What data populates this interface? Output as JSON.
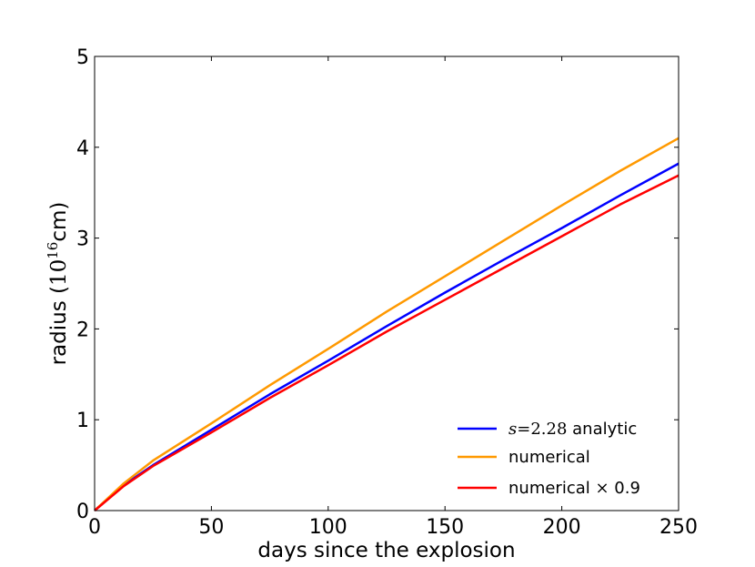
{
  "chart_data": {
    "type": "line",
    "xlabel": "days since the explosion",
    "ylabel": "radius (10^16 cm)",
    "ylabel_parts": {
      "prefix": "radius (",
      "base": "10",
      "exponent": "16",
      "suffix": "cm)"
    },
    "xlim": [
      0,
      250
    ],
    "ylim": [
      0,
      5
    ],
    "xticks": [
      0,
      50,
      100,
      150,
      200,
      250
    ],
    "yticks": [
      0,
      1,
      2,
      3,
      4,
      5
    ],
    "xtick_labels": [
      "0",
      "50",
      "100",
      "150",
      "200",
      "250"
    ],
    "ytick_labels": [
      "0",
      "1",
      "2",
      "3",
      "4",
      "5"
    ],
    "grid": false,
    "legend_position": "bottom-right",
    "series": [
      {
        "name": "s = 2.28 analytic",
        "name_parts": {
          "symbol": "s",
          "eq": "=",
          "value": "2.28",
          "suffix": " analytic"
        },
        "color": "#0000ff",
        "x": [
          0,
          12.5,
          25,
          50,
          75,
          100,
          125,
          150,
          175,
          200,
          225,
          250
        ],
        "y": [
          0,
          0.28,
          0.5,
          0.89,
          1.28,
          1.65,
          2.03,
          2.4,
          2.76,
          3.11,
          3.47,
          3.82
        ]
      },
      {
        "name": "numerical",
        "color": "#ff9900",
        "x": [
          0,
          12.5,
          25,
          50,
          75,
          100,
          125,
          150,
          175,
          200,
          225,
          250
        ],
        "y": [
          0,
          0.3,
          0.55,
          0.96,
          1.38,
          1.78,
          2.19,
          2.58,
          2.97,
          3.36,
          3.74,
          4.1
        ]
      },
      {
        "name": "numerical × 0.9",
        "name_parts": {
          "text": "numerical ",
          "times": "×",
          "value": " 0.9"
        },
        "color": "#ff0000",
        "x": [
          0,
          12.5,
          25,
          50,
          75,
          100,
          125,
          150,
          175,
          200,
          225,
          250
        ],
        "y": [
          0,
          0.27,
          0.49,
          0.86,
          1.24,
          1.6,
          1.97,
          2.32,
          2.67,
          3.02,
          3.37,
          3.69
        ]
      }
    ]
  }
}
